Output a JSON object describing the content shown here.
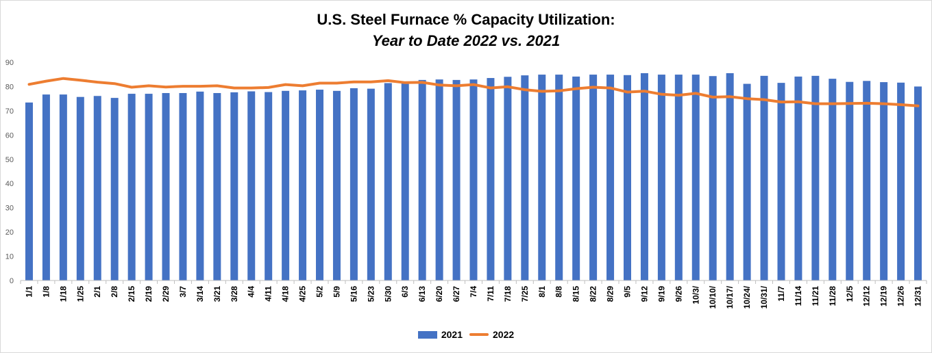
{
  "chart_data": {
    "type": "bar",
    "title": "U.S. Steel Furnace % Capacity Utilization:",
    "subtitle": "Year to Date 2022 vs. 2021",
    "xlabel": "",
    "ylabel": "",
    "ylim": [
      0,
      90
    ],
    "yticks": [
      0,
      10,
      20,
      30,
      40,
      50,
      60,
      70,
      80,
      90
    ],
    "grid": false,
    "legend": "bottom",
    "categories": [
      "1/1",
      "1/8",
      "1/18",
      "1/25",
      "2/1",
      "2/8",
      "2/15",
      "2/19",
      "2/29",
      "3/7",
      "3/14",
      "3/21",
      "3/28",
      "4/4",
      "4/11",
      "4/18",
      "4/25",
      "5/2",
      "5/9",
      "5/16",
      "5/23",
      "5/30",
      "6/3",
      "6/13",
      "6/20",
      "6/27",
      "7/4",
      "7/11",
      "7/18",
      "7/25",
      "8/1",
      "8/8",
      "8/15",
      "8/22",
      "8/29",
      "9/5",
      "9/12",
      "9/19",
      "9/26",
      "10/3/",
      "10/10/",
      "10/17/",
      "10/24/",
      "10/31/",
      "11/7",
      "11/14",
      "11/21",
      "11/28",
      "12/5",
      "12/12",
      "12/19",
      "12/26",
      "12/31"
    ],
    "series": [
      {
        "name": "2021",
        "type": "bar",
        "color": "#4472c4",
        "values": [
          73.4,
          76.7,
          76.7,
          75.7,
          76.1,
          75.3,
          77.0,
          77.0,
          77.3,
          77.3,
          77.9,
          77.3,
          77.6,
          78.0,
          77.7,
          78.2,
          78.4,
          78.7,
          78.2,
          79.3,
          79.1,
          81.4,
          81.7,
          82.7,
          82.9,
          82.7,
          82.9,
          83.5,
          84.0,
          84.6,
          84.9,
          84.9,
          84.1,
          84.9,
          84.9,
          84.7,
          85.5,
          84.9,
          84.9,
          84.9,
          84.3,
          85.5,
          81.1,
          84.4,
          81.5,
          84.1,
          84.4,
          83.2,
          81.9,
          82.3,
          81.8,
          81.6,
          80.0
        ]
      },
      {
        "name": "2022",
        "type": "line",
        "color": "#ed7d31",
        "values": [
          80.9,
          82.2,
          83.3,
          82.6,
          81.8,
          81.2,
          79.7,
          80.3,
          79.8,
          80.1,
          80.1,
          80.3,
          79.4,
          79.4,
          79.6,
          80.8,
          80.3,
          81.4,
          81.4,
          81.9,
          81.9,
          82.4,
          81.6,
          81.7,
          80.6,
          80.3,
          80.8,
          79.4,
          79.9,
          78.7,
          78.0,
          78.2,
          79.1,
          79.7,
          79.4,
          77.7,
          78.1,
          76.8,
          76.4,
          77.2,
          75.6,
          75.8,
          75.0,
          74.6,
          73.6,
          73.7,
          72.9,
          72.9,
          73.0,
          73.1,
          72.9,
          72.5,
          72.0
        ]
      }
    ]
  }
}
